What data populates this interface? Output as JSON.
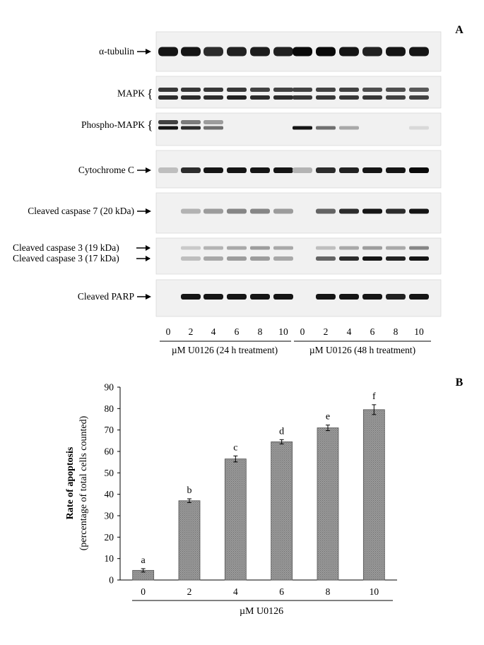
{
  "panel_a": {
    "label": "A",
    "blots": [
      {
        "label": "α-tubulin",
        "pointer": "arrow",
        "bands": [
          {
            "intensity": [
              0.95,
              0.95,
              0.85,
              0.9,
              0.92,
              0.9,
              1.0,
              1.0,
              0.95,
              0.9,
              0.95,
              0.95
            ]
          }
        ]
      },
      {
        "label": "MAPK",
        "pointer": "brace",
        "bands": [
          {
            "intensity": [
              0.8,
              0.8,
              0.8,
              0.8,
              0.75,
              0.75,
              0.75,
              0.75,
              0.75,
              0.7,
              0.7,
              0.65
            ]
          },
          {
            "intensity": [
              0.85,
              0.85,
              0.85,
              0.9,
              0.85,
              0.85,
              0.8,
              0.8,
              0.8,
              0.8,
              0.75,
              0.75
            ]
          }
        ]
      },
      {
        "label": "Phospho-MAPK",
        "pointer": "brace",
        "bands": [
          {
            "intensity": [
              0.75,
              0.5,
              0.35,
              0,
              0,
              0,
              0,
              0,
              0,
              0,
              0,
              0
            ]
          },
          {
            "intensity": [
              0.95,
              0.85,
              0.55,
              0,
              0,
              0,
              0.95,
              0.55,
              0.3,
              0,
              0,
              0.08
            ]
          }
        ]
      },
      {
        "label": "Cytochrome C",
        "pointer": "arrow",
        "bands": [
          {
            "intensity": [
              0.2,
              0.85,
              0.95,
              0.95,
              0.95,
              0.95,
              0.25,
              0.85,
              0.9,
              0.95,
              0.95,
              1.0
            ]
          }
        ]
      },
      {
        "label": "Cleaved caspase 7 (20 kDa)",
        "pointer": "arrow",
        "bands": [
          {
            "intensity": [
              0,
              0.25,
              0.35,
              0.45,
              0.45,
              0.35,
              0,
              0.6,
              0.85,
              0.95,
              0.85,
              0.95
            ]
          }
        ]
      },
      {
        "label": "Cleaved caspase 3 (19 kDa)",
        "label2": "Cleaved caspase 3 (17 kDa)",
        "pointer": "double-arrow",
        "bands": [
          {
            "intensity": [
              0,
              0.15,
              0.25,
              0.3,
              0.35,
              0.3,
              0,
              0.2,
              0.3,
              0.35,
              0.3,
              0.45
            ]
          },
          {
            "intensity": [
              0,
              0.2,
              0.3,
              0.35,
              0.35,
              0.3,
              0,
              0.6,
              0.85,
              0.95,
              0.9,
              0.95
            ]
          }
        ]
      },
      {
        "label": "Cleaved PARP",
        "pointer": "arrow",
        "bands": [
          {
            "intensity": [
              0,
              0.95,
              0.95,
              0.95,
              0.95,
              0.95,
              0,
              0.95,
              0.95,
              0.95,
              0.9,
              0.95
            ]
          }
        ]
      }
    ],
    "lane_labels": [
      "0",
      "2",
      "4",
      "6",
      "8",
      "10",
      "0",
      "2",
      "4",
      "6",
      "8",
      "10"
    ],
    "group_labels": [
      "µM U0126 (24 h treatment)",
      "µM U0126 (48 h treatment)"
    ]
  },
  "panel_b": {
    "label": "B",
    "chart_data": {
      "type": "bar",
      "categories": [
        "0",
        "2",
        "4",
        "6",
        "8",
        "10"
      ],
      "values": [
        4.5,
        37,
        56.5,
        64.5,
        71,
        79.5
      ],
      "errors": [
        0.8,
        0.9,
        1.4,
        1.0,
        1.3,
        2.3
      ],
      "letters": [
        "a",
        "b",
        "c",
        "d",
        "e",
        "f"
      ],
      "ylabel_bold": "Rate of apoptosis",
      "ylabel_sub": "(percentage of total cells counted)",
      "xlabel": "µM U0126",
      "yticks": [
        0,
        10,
        20,
        30,
        40,
        50,
        60,
        70,
        80,
        90
      ],
      "ylim": [
        0,
        90
      ],
      "bar_color": "#9a9a9a",
      "grid": false
    }
  }
}
